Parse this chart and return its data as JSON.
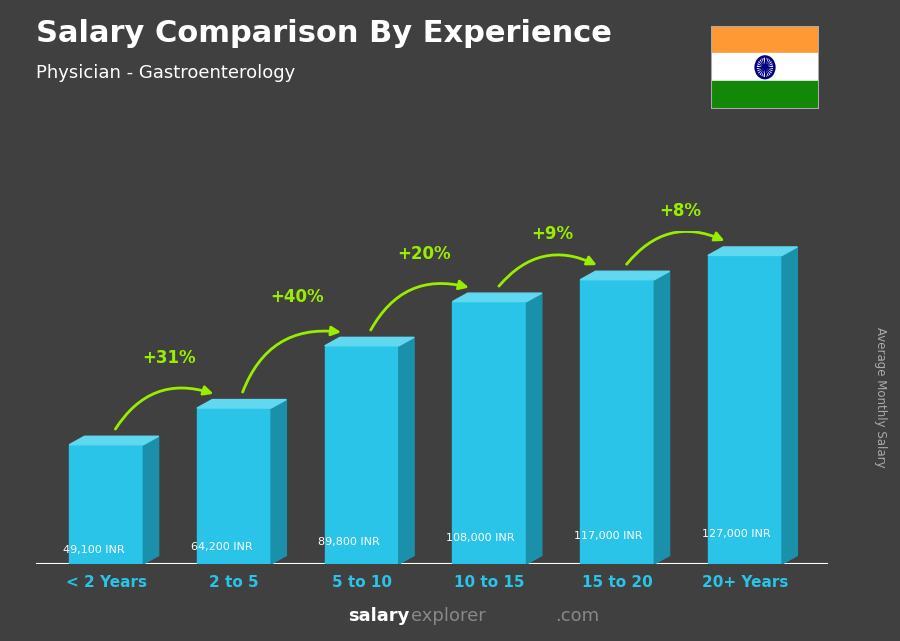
{
  "title": "Salary Comparison By Experience",
  "subtitle": "Physician - Gastroenterology",
  "ylabel": "Average Monthly Salary",
  "categories": [
    "< 2 Years",
    "2 to 5",
    "5 to 10",
    "10 to 15",
    "15 to 20",
    "20+ Years"
  ],
  "values": [
    49100,
    64200,
    89800,
    108000,
    117000,
    127000
  ],
  "value_labels": [
    "49,100 INR",
    "64,200 INR",
    "89,800 INR",
    "108,000 INR",
    "117,000 INR",
    "127,000 INR"
  ],
  "pct_labels": [
    "+31%",
    "+40%",
    "+20%",
    "+9%",
    "+8%"
  ],
  "bar_color_main": "#29C4E8",
  "bar_color_side": "#1A90AA",
  "bar_color_top": "#60D8F0",
  "background_color": "#404040",
  "title_color": "#FFFFFF",
  "subtitle_color": "#FFFFFF",
  "label_color": "#FFFFFF",
  "pct_color": "#99EE00",
  "tick_color": "#29C4E8",
  "watermark_salary_color": "#FFFFFF",
  "watermark_explorer_color": "#888888",
  "ylabel_color": "#AAAAAA"
}
